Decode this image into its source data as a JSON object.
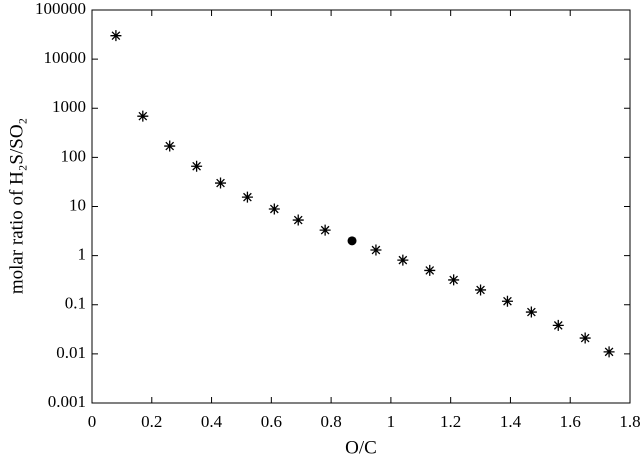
{
  "chart_data": {
    "type": "scatter",
    "xlabel": "O/C",
    "ylabel": "molar ratio of H₂S/SO₂",
    "xlim": [
      0,
      1.8
    ],
    "xticks": [
      0,
      0.2,
      0.4,
      0.6,
      0.8,
      1,
      1.2,
      1.4,
      1.6,
      1.8
    ],
    "ylim": [
      0.001,
      100000
    ],
    "yticks": [
      0.001,
      0.01,
      0.1,
      1,
      10,
      100,
      1000,
      10000,
      100000
    ],
    "yscale": "log",
    "series": [
      {
        "color": "#000000",
        "marker": "asterisk",
        "x": [
          0.08,
          0.17,
          0.26,
          0.35,
          0.43,
          0.52,
          0.61,
          0.69,
          0.78,
          0.95,
          1.04,
          1.13,
          1.21,
          1.3,
          1.39,
          1.47,
          1.56,
          1.65,
          1.73
        ],
        "values": [
          30000,
          690,
          170,
          66,
          30,
          15.5,
          8.9,
          5.3,
          3.3,
          1.3,
          0.81,
          0.5,
          0.32,
          0.2,
          0.118,
          0.071,
          0.038,
          0.021,
          0.011
        ]
      },
      {
        "color": "#000000",
        "marker": "circle",
        "x": [
          0.87
        ],
        "values": [
          2
        ]
      }
    ]
  }
}
